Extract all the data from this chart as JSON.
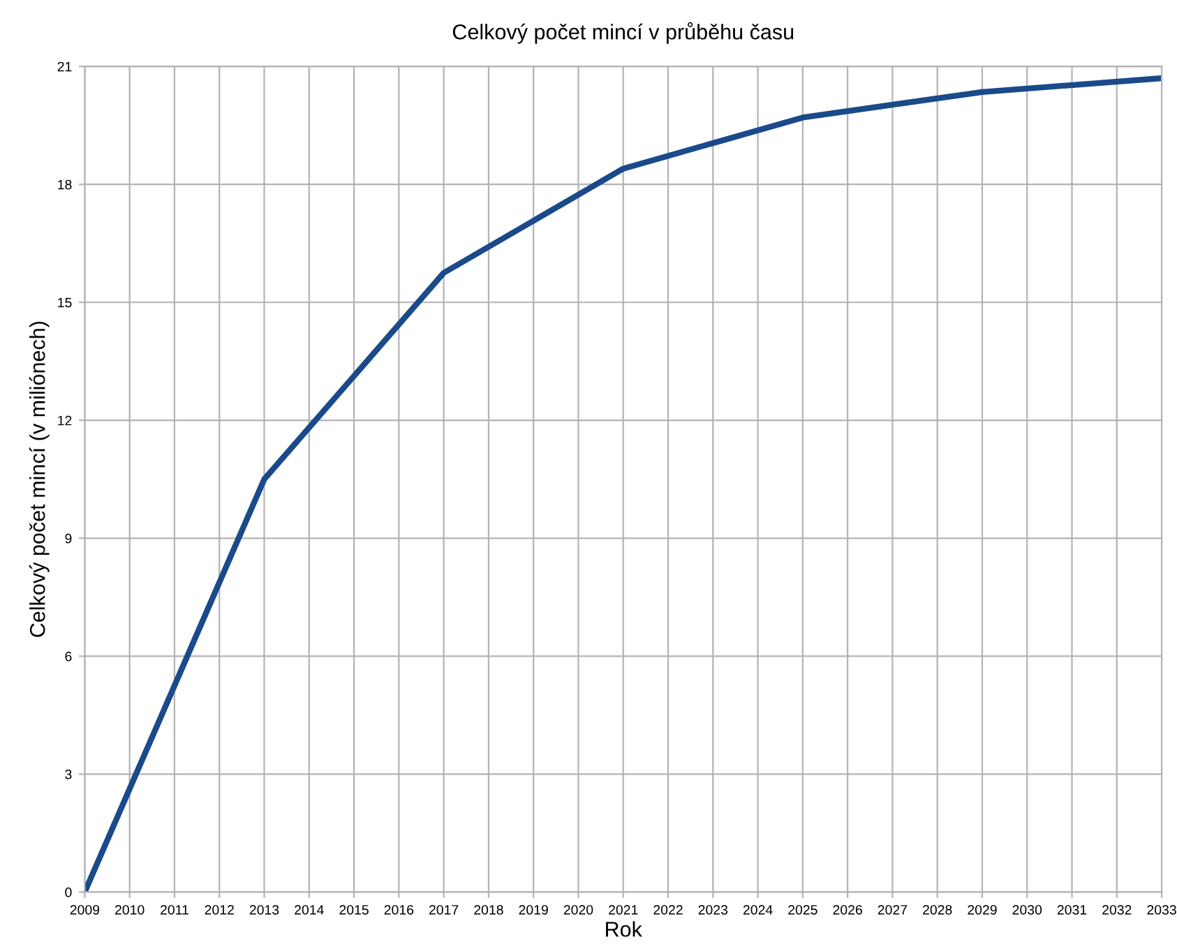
{
  "chart_data": {
    "type": "line",
    "title": "Celkový počet mincí v průběhu času",
    "xlabel": "Rok",
    "ylabel": "Celkový počet mincí (v miliónech)",
    "x": [
      2009,
      2013,
      2017,
      2021,
      2025,
      2029,
      2033
    ],
    "series": [
      {
        "color": "#1a4a8a",
        "values": [
          0,
          10.5,
          15.75,
          18.4,
          19.7,
          20.35,
          20.7
        ]
      }
    ],
    "xlim": [
      2009,
      2033
    ],
    "xticks": [
      2009,
      2010,
      2011,
      2012,
      2013,
      2014,
      2015,
      2016,
      2017,
      2018,
      2019,
      2020,
      2021,
      2022,
      2023,
      2024,
      2025,
      2026,
      2027,
      2028,
      2029,
      2030,
      2031,
      2032,
      2033
    ],
    "ylim": [
      0,
      21
    ],
    "yticks": [
      0,
      3,
      6,
      9,
      12,
      15,
      18,
      21
    ],
    "grid": true,
    "legend": false,
    "marker": "none",
    "line_style": "solid"
  }
}
